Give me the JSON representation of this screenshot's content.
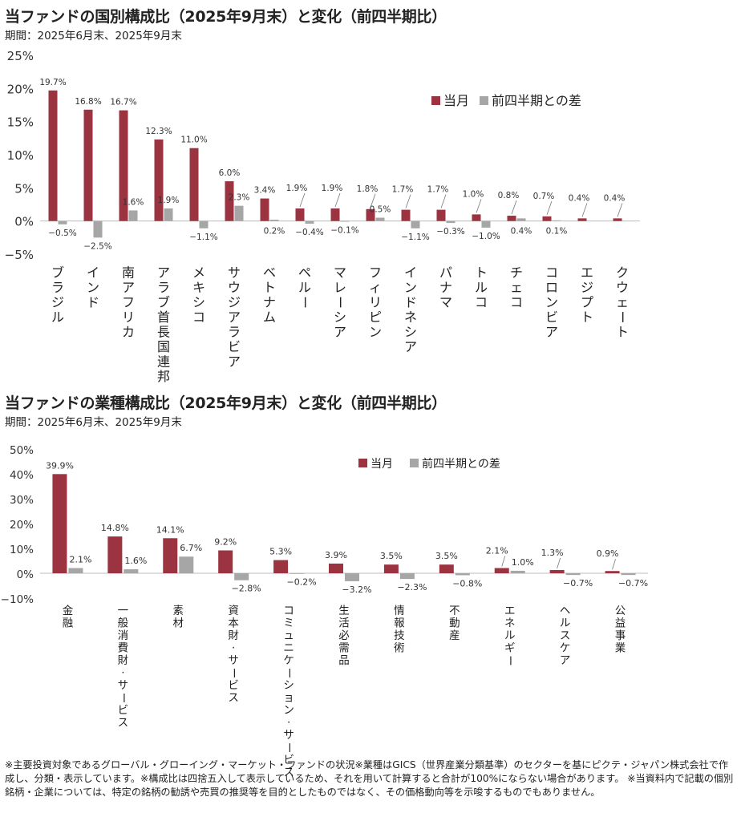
{
  "colors": {
    "current": "#9b3340",
    "diff": "#a6a6a6",
    "leader": "#777777"
  },
  "chart_data": [
    {
      "type": "bar",
      "title": "当ファンドの国別構成比（2025年9月末）と変化（前四半期比）",
      "subtitle": "期間：2025年6月末、2025年9月末",
      "categories": [
        "ブラジル",
        "インド",
        "南アフリカ",
        "アラブ首長国連邦",
        "メキシコ",
        "サウジアラビア",
        "ベトナム",
        "ペルー",
        "マレーシア",
        "フィリピン",
        "インドネシア",
        "パナマ",
        "トルコ",
        "チェコ",
        "コロンビア",
        "エジプト",
        "クウェート"
      ],
      "series": [
        {
          "name": "当月",
          "values": [
            19.7,
            16.8,
            16.7,
            12.3,
            11.0,
            6.0,
            3.4,
            1.9,
            1.9,
            1.8,
            1.7,
            1.7,
            1.0,
            0.8,
            0.7,
            0.4,
            0.4
          ],
          "labels": [
            "19.7%",
            "16.8%",
            "16.7%",
            "12.3%",
            "11.0%",
            "6.0%",
            "3.4%",
            "1.9%",
            "1.9%",
            "1.8%",
            "1.7%",
            "1.7%",
            "1.0%",
            "0.8%",
            "0.7%",
            "0.4%",
            "0.4%"
          ]
        },
        {
          "name": "前四半期との差",
          "values": [
            -0.5,
            -2.5,
            1.6,
            1.9,
            -1.1,
            2.3,
            0.2,
            -0.4,
            -0.1,
            0.5,
            -1.1,
            -0.3,
            -1.0,
            0.4,
            0.1,
            null,
            null
          ],
          "labels": [
            "−0.5%",
            "−2.5%",
            "1.6%",
            "1.9%",
            "−1.1%",
            "2.3%",
            "0.2%",
            "−0.4%",
            "−0.1%",
            "0.5%",
            "−1.1%",
            "−0.3%",
            "−1.0%",
            "0.4%",
            "0.1%",
            "",
            ""
          ]
        }
      ],
      "ylim": [
        -5,
        25
      ],
      "yticks": [
        -5,
        0,
        5,
        10,
        15,
        20,
        25
      ],
      "ytick_labels": [
        "−5%",
        "0%",
        "5%",
        "10%",
        "15%",
        "20%",
        "25%"
      ],
      "legend_position": "top-right",
      "grid": false
    },
    {
      "type": "bar",
      "title": "当ファンドの業種構成比（2025年9月末）と変化（前四半期比）",
      "subtitle": "期間：2025年6月末、2025年9月末",
      "categories": [
        "金融",
        "一般消費財・サービス",
        "素材",
        "資本財・サービス",
        "コミュニケーション・サービス",
        "生活必需品",
        "情報技術",
        "不動産",
        "エネルギー",
        "ヘルスケア",
        "公益事業"
      ],
      "series": [
        {
          "name": "当月",
          "values": [
            39.9,
            14.8,
            14.1,
            9.2,
            5.3,
            3.9,
            3.5,
            3.5,
            2.1,
            1.3,
            0.9
          ],
          "labels": [
            "39.9%",
            "14.8%",
            "14.1%",
            "9.2%",
            "5.3%",
            "3.9%",
            "3.5%",
            "3.5%",
            "2.1%",
            "1.3%",
            "0.9%"
          ]
        },
        {
          "name": "前四半期との差",
          "values": [
            2.1,
            1.6,
            6.7,
            -2.8,
            -0.2,
            -3.2,
            -2.3,
            -0.8,
            1.0,
            -0.7,
            -0.7
          ],
          "labels": [
            "2.1%",
            "1.6%",
            "6.7%",
            "−2.8%",
            "−0.2%",
            "−3.2%",
            "−2.3%",
            "−0.8%",
            "1.0%",
            "−0.7%",
            "−0.7%"
          ]
        }
      ],
      "ylim": [
        -10,
        50
      ],
      "yticks": [
        -10,
        0,
        10,
        20,
        30,
        40,
        50
      ],
      "ytick_labels": [
        "−10%",
        "0%",
        "10%",
        "20%",
        "30%",
        "40%",
        "50%"
      ],
      "legend_position": "top-center",
      "grid": false
    }
  ],
  "footnote": "※主要投資対象であるグローバル・グローイング・マーケット・ファンドの状況※業種はGICS（世界産業分類基準）のセクターを基にピクテ・ジャパン株式会社で作成し、分類・表示しています。※構成比は四捨五入して表示しているため、それを用いて計算すると合計が100%にならない場合があります。 ※当資料内で記載の個別銘柄・企業については、特定の銘柄の勧誘や売買の推奨等を目的としたものではなく、その価格動向等を示唆するものでもありません。"
}
